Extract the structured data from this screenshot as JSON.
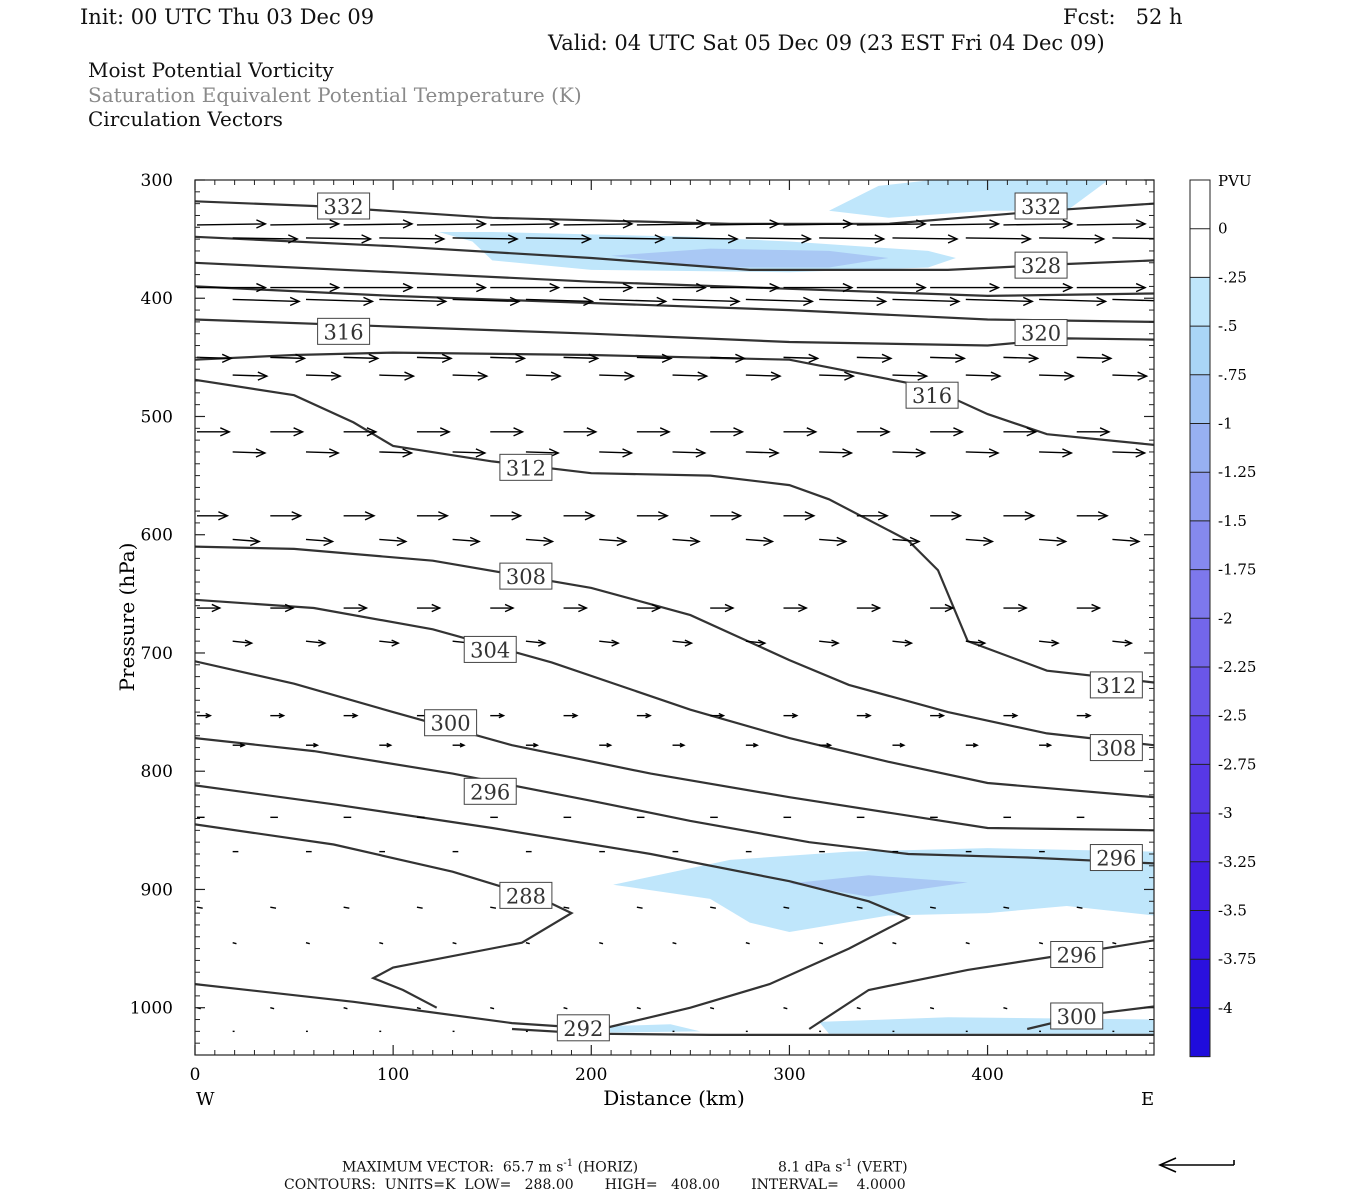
{
  "header": {
    "init": "Init: 00 UTC Thu 03 Dec 09",
    "fcst": "Fcst:   52 h",
    "valid": "Valid: 04 UTC Sat 05 Dec 09 (23 EST Fri 04 Dec 09)"
  },
  "fields": {
    "line1": "Moist Potential Vorticity",
    "line2": "Saturation Equivalent Potential Temperature (K)",
    "line3": "Circulation Vectors"
  },
  "footer": {
    "max_vector": "MAXIMUM VECTOR:  65.7 m s",
    "horiz": "(HORIZ)",
    "vert_value": "8.1 dPa s",
    "vert": "(VERT)",
    "exp": "-1",
    "contours": "CONTOURS:  UNITS=K  LOW=   288.00       HIGH=   408.00       INTERVAL=    4.0000"
  },
  "colors": {
    "contour": "#333333",
    "vector": "#000000",
    "pv_shade_1": "#bfe6fb",
    "pv_shade_2": "#a9c8f4",
    "pv_shade_3": "#9fb2f2"
  },
  "chart_data": {
    "type": "cross-section",
    "xlabel": "Distance (km)",
    "ylabel": "Pressure (hPa)",
    "xlim": [
      0,
      484
    ],
    "ylim": [
      1040,
      300
    ],
    "xticks": [
      0,
      100,
      200,
      300,
      400
    ],
    "yticks": [
      300,
      400,
      500,
      600,
      700,
      800,
      900,
      1000
    ],
    "left_end": "W",
    "right_end": "E",
    "colorbar": {
      "unit": "PVU",
      "labels": [
        "0",
        "-.25",
        "-.5",
        "-.75",
        "-1",
        "-1.25",
        "-1.5",
        "-1.75",
        "-2",
        "-2.25",
        "-2.5",
        "-2.75",
        "-3",
        "-3.25",
        "-3.5",
        "-3.75",
        "-4"
      ],
      "colors": [
        "#ffffff",
        "#ffffff",
        "#bfe6fb",
        "#a9d6f7",
        "#9fc3f4",
        "#97b0f2",
        "#8e9cf0",
        "#8589ee",
        "#7d78ec",
        "#7366ea",
        "#6a56e9",
        "#6146e8",
        "#5738e6",
        "#4d2ae4",
        "#421ee2",
        "#3616e0",
        "#2a10de",
        "#1f0cdc"
      ]
    },
    "contours": [
      {
        "label": "332",
        "labels": [
          [
            75,
            322
          ],
          [
            427,
            322
          ]
        ],
        "points": [
          [
            0,
            318
          ],
          [
            60,
            322
          ],
          [
            150,
            332
          ],
          [
            270,
            337
          ],
          [
            350,
            337
          ],
          [
            430,
            326
          ],
          [
            484,
            320
          ]
        ]
      },
      {
        "label": "328",
        "labels": [
          [
            427,
            372
          ]
        ],
        "points": [
          [
            0,
            348
          ],
          [
            100,
            356
          ],
          [
            200,
            366
          ],
          [
            280,
            376
          ],
          [
            380,
            376
          ],
          [
            440,
            371
          ],
          [
            484,
            368
          ]
        ]
      },
      {
        "label": "",
        "labels": [],
        "points": [
          [
            0,
            370
          ],
          [
            100,
            378
          ],
          [
            200,
            386
          ],
          [
            300,
            392
          ],
          [
            400,
            398
          ],
          [
            484,
            396
          ]
        ]
      },
      {
        "label": "",
        "labels": [],
        "points": [
          [
            0,
            390
          ],
          [
            100,
            398
          ],
          [
            200,
            404
          ],
          [
            300,
            410
          ],
          [
            400,
            418
          ],
          [
            484,
            420
          ]
        ]
      },
      {
        "label": "320",
        "labels": [
          [
            427,
            429
          ]
        ],
        "points": [
          [
            0,
            418
          ],
          [
            100,
            424
          ],
          [
            200,
            430
          ],
          [
            300,
            437
          ],
          [
            400,
            440
          ],
          [
            440,
            434
          ],
          [
            484,
            435
          ]
        ]
      },
      {
        "label": "316",
        "labels": [
          [
            75,
            428
          ],
          [
            372,
            482
          ]
        ],
        "points": [
          [
            0,
            452
          ],
          [
            50,
            448
          ],
          [
            100,
            446
          ],
          [
            200,
            448
          ],
          [
            300,
            452
          ],
          [
            370,
            475
          ],
          [
            400,
            498
          ],
          [
            430,
            515
          ],
          [
            484,
            524
          ]
        ]
      },
      {
        "label": "312",
        "labels": [
          [
            167,
            543
          ],
          [
            465,
            727
          ]
        ],
        "points": [
          [
            0,
            469
          ],
          [
            50,
            482
          ],
          [
            80,
            505
          ],
          [
            100,
            525
          ],
          [
            150,
            538
          ],
          [
            200,
            548
          ],
          [
            260,
            550
          ],
          [
            300,
            558
          ],
          [
            320,
            570
          ],
          [
            360,
            605
          ],
          [
            375,
            630
          ],
          [
            390,
            690
          ],
          [
            430,
            715
          ],
          [
            484,
            725
          ]
        ]
      },
      {
        "label": "308",
        "labels": [
          [
            167,
            635
          ],
          [
            465,
            780
          ]
        ],
        "points": [
          [
            0,
            610
          ],
          [
            50,
            612
          ],
          [
            120,
            622
          ],
          [
            200,
            645
          ],
          [
            250,
            668
          ],
          [
            300,
            706
          ],
          [
            330,
            727
          ],
          [
            380,
            750
          ],
          [
            430,
            768
          ],
          [
            484,
            778
          ]
        ]
      },
      {
        "label": "304",
        "labels": [
          [
            149,
            697
          ]
        ],
        "points": [
          [
            0,
            655
          ],
          [
            60,
            662
          ],
          [
            120,
            680
          ],
          [
            180,
            708
          ],
          [
            250,
            748
          ],
          [
            300,
            772
          ],
          [
            350,
            792
          ],
          [
            400,
            810
          ],
          [
            484,
            822
          ]
        ]
      },
      {
        "label": "300",
        "labels": [
          [
            129,
            759
          ]
        ],
        "points": [
          [
            0,
            707
          ],
          [
            50,
            726
          ],
          [
            100,
            750
          ],
          [
            160,
            778
          ],
          [
            230,
            802
          ],
          [
            300,
            822
          ],
          [
            400,
            848
          ],
          [
            484,
            850
          ]
        ]
      },
      {
        "label": "296",
        "labels": [
          [
            149,
            817
          ],
          [
            465,
            873
          ],
          [
            445,
            955
          ]
        ],
        "points": [
          [
            0,
            772
          ],
          [
            60,
            783
          ],
          [
            130,
            802
          ],
          [
            200,
            825
          ],
          [
            250,
            842
          ],
          [
            310,
            860
          ],
          [
            360,
            870
          ],
          [
            420,
            873
          ],
          [
            484,
            878
          ]
        ]
      },
      {
        "label": "292",
        "labels": [
          [
            196,
            1017
          ]
        ],
        "points": [
          [
            0,
            980
          ],
          [
            80,
            995
          ],
          [
            160,
            1013
          ],
          [
            205,
            1018
          ],
          [
            250,
            1000
          ],
          [
            290,
            980
          ],
          [
            330,
            950
          ],
          [
            360,
            924
          ],
          [
            340,
            910
          ],
          [
            300,
            893
          ],
          [
            230,
            870
          ],
          [
            150,
            848
          ],
          [
            70,
            828
          ],
          [
            0,
            812
          ]
        ]
      },
      {
        "label": "288",
        "labels": [
          [
            167,
            905
          ]
        ],
        "points": [
          [
            122,
            1000
          ],
          [
            105,
            985
          ],
          [
            90,
            975
          ],
          [
            100,
            966
          ],
          [
            165,
            945
          ],
          [
            190,
            920
          ],
          [
            175,
            908
          ],
          [
            130,
            885
          ],
          [
            70,
            862
          ],
          [
            0,
            845
          ]
        ]
      },
      {
        "label": "",
        "labels": [
          [
            445,
            955
          ]
        ],
        "points": [
          [
            484,
            943
          ],
          [
            440,
            955
          ],
          [
            390,
            968
          ],
          [
            340,
            985
          ],
          [
            310,
            1018
          ]
        ]
      },
      {
        "label": "300",
        "labels": [
          [
            445,
            1007
          ]
        ],
        "points": [
          [
            484,
            999
          ],
          [
            450,
            1006
          ],
          [
            420,
            1018
          ]
        ]
      },
      {
        "label": "",
        "labels": [],
        "points": [
          [
            160,
            1018
          ],
          [
            200,
            1022
          ],
          [
            260,
            1023
          ],
          [
            400,
            1023
          ],
          [
            484,
            1023
          ]
        ]
      }
    ],
    "pv_shading": [
      {
        "level": "-.25 to -.5",
        "color": "#bfe6fb",
        "points": [
          [
            123,
            344
          ],
          [
            140,
            352
          ],
          [
            150,
            368
          ],
          [
            200,
            376
          ],
          [
            300,
            378
          ],
          [
            370,
            374
          ],
          [
            384,
            366
          ],
          [
            370,
            360
          ],
          [
            300,
            352
          ],
          [
            250,
            348
          ],
          [
            150,
            344
          ]
        ]
      },
      {
        "level": "-.5 to -.75",
        "color": "#a9c8f4",
        "points": [
          [
            210,
            364
          ],
          [
            260,
            358
          ],
          [
            320,
            360
          ],
          [
            350,
            366
          ],
          [
            320,
            374
          ],
          [
            260,
            374
          ]
        ]
      },
      {
        "level": "-.25 to -.5",
        "color": "#bfe6fb",
        "points": [
          [
            320,
            326
          ],
          [
            345,
            305
          ],
          [
            372,
            300
          ],
          [
            461,
            300
          ],
          [
            440,
            326
          ],
          [
            400,
            326
          ],
          [
            350,
            332
          ]
        ]
      },
      {
        "level": "-.25 to -.5",
        "color": "#bfe6fb",
        "points": [
          [
            211,
            896
          ],
          [
            270,
            875
          ],
          [
            330,
            868
          ],
          [
            400,
            865
          ],
          [
            484,
            868
          ],
          [
            484,
            922
          ],
          [
            440,
            914
          ],
          [
            400,
            920
          ],
          [
            350,
            922
          ],
          [
            300,
            936
          ],
          [
            280,
            928
          ],
          [
            260,
            908
          ]
        ]
      },
      {
        "level": "-.5 to -.75",
        "color": "#a9c8f4",
        "points": [
          [
            300,
            895
          ],
          [
            340,
            888
          ],
          [
            390,
            894
          ],
          [
            340,
            906
          ]
        ]
      },
      {
        "level": "-.25 to -.5",
        "color": "#bfe6fb",
        "points": [
          [
            315,
            1012
          ],
          [
            380,
            1008
          ],
          [
            484,
            1010
          ],
          [
            484,
            1022
          ],
          [
            320,
            1022
          ]
        ]
      },
      {
        "level": "-.25 to -.5",
        "color": "#bfe6fb",
        "points": [
          [
            200,
            1016
          ],
          [
            240,
            1014
          ],
          [
            255,
            1020
          ],
          [
            210,
            1021
          ]
        ]
      }
    ],
    "vectors": {
      "rows": [
        {
          "p": 338,
          "dx": 36,
          "dy": -0.5
        },
        {
          "p": 349,
          "dx": 34,
          "dy": 0.5
        },
        {
          "p": 391,
          "dx": 36,
          "dy": 0
        },
        {
          "p": 401,
          "dx": 35,
          "dy": 1
        },
        {
          "p": 450,
          "dx": 18,
          "dy": 0.5
        },
        {
          "p": 465,
          "dx": 18,
          "dy": 0.5
        },
        {
          "p": 513,
          "dx": 17,
          "dy": 0
        },
        {
          "p": 530,
          "dx": 17,
          "dy": 0.5
        },
        {
          "p": 584,
          "dx": 16,
          "dy": 0
        },
        {
          "p": 604,
          "dx": 14,
          "dy": 1
        },
        {
          "p": 662,
          "dx": 12,
          "dy": 0
        },
        {
          "p": 690,
          "dx": 10,
          "dy": 1
        },
        {
          "p": 753,
          "dx": 7,
          "dy": 0
        },
        {
          "p": 778,
          "dx": 6,
          "dy": 0
        },
        {
          "p": 839,
          "dx": 4,
          "dy": 0
        },
        {
          "p": 868,
          "dx": 3,
          "dy": 0
        },
        {
          "p": 915,
          "dx": 3,
          "dy": 0.5
        },
        {
          "p": 945,
          "dx": 2,
          "dy": 0.5
        },
        {
          "p": 1000,
          "dx": 2,
          "dy": 0.5
        },
        {
          "p": 1020,
          "dx": 1,
          "dy": 0
        }
      ],
      "x_positions": [
        0,
        37,
        74,
        111,
        148,
        185,
        222,
        259,
        296,
        333,
        370,
        407,
        444
      ]
    }
  }
}
